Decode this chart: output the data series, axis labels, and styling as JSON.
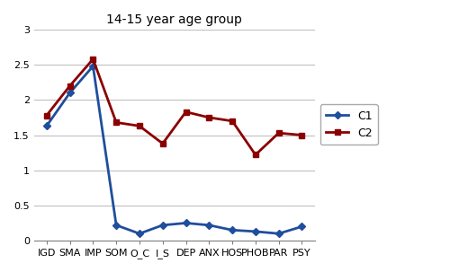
{
  "title": "14-15 year age group",
  "categories": [
    "IGD",
    "SMA",
    "IMP",
    "SOM",
    "O_C",
    "I_S",
    "DEP",
    "ANX",
    "HOS",
    "PHOB",
    "PAR",
    "PSY"
  ],
  "C1": [
    1.63,
    2.1,
    2.48,
    0.22,
    0.1,
    0.22,
    0.25,
    0.22,
    0.15,
    0.13,
    0.1,
    0.2
  ],
  "C2": [
    1.78,
    2.2,
    2.58,
    1.68,
    1.63,
    1.38,
    1.83,
    1.75,
    1.7,
    1.22,
    1.53,
    1.5
  ],
  "C1_color": "#1f4e9c",
  "C2_color": "#8b0000",
  "ylim": [
    0,
    3
  ],
  "yticks": [
    0,
    0.5,
    1.0,
    1.5,
    2.0,
    2.5,
    3.0
  ],
  "ytick_labels": [
    "0",
    "0.5",
    "1",
    "1.5",
    "2",
    "2.5",
    "3"
  ],
  "title_fontsize": 10,
  "legend_fontsize": 9,
  "tick_fontsize": 8,
  "background_color": "#ffffff"
}
